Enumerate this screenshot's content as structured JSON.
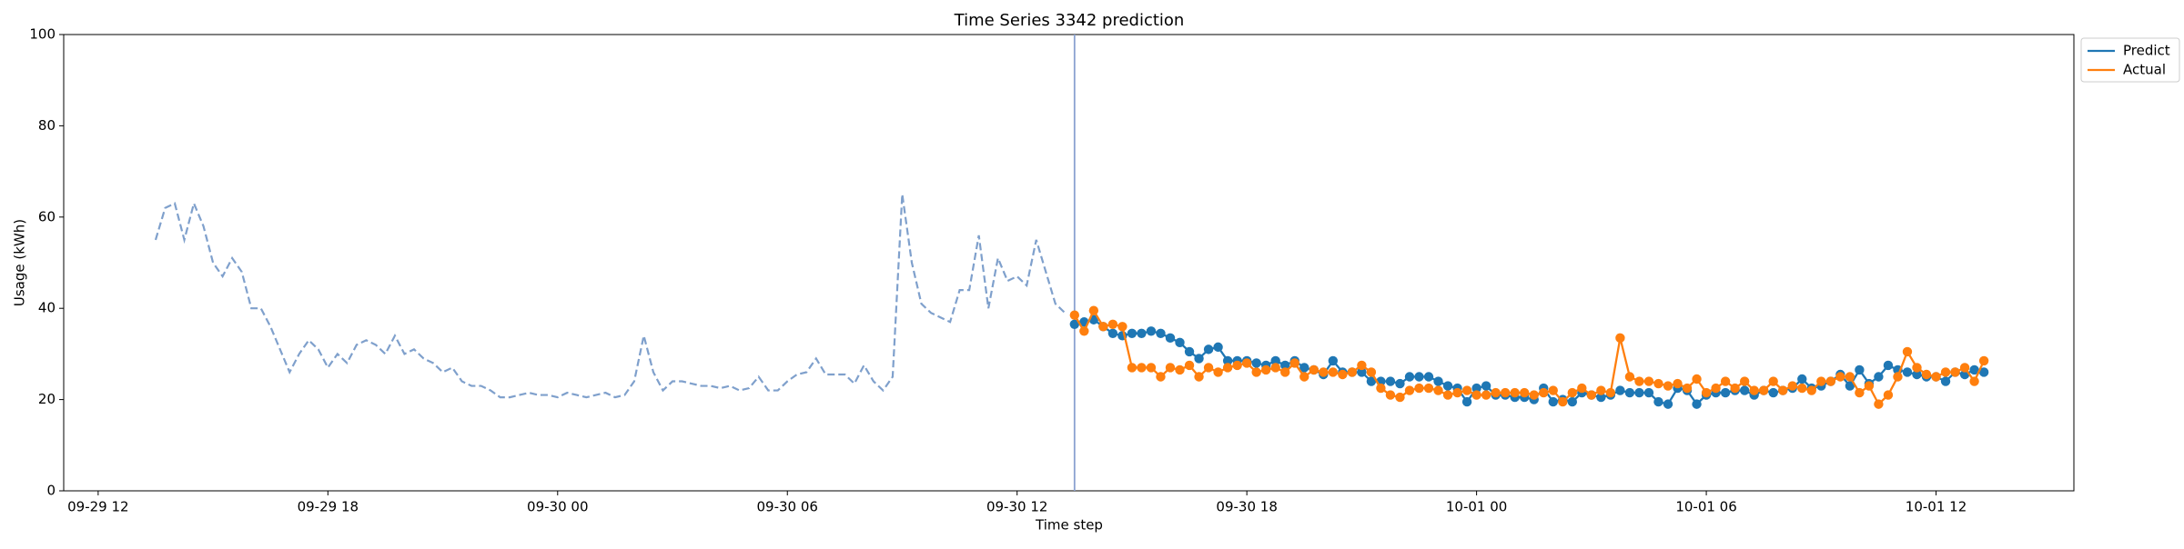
{
  "chart_data": {
    "type": "line",
    "title": "Time Series 3342 prediction",
    "xlabel": "Time step",
    "ylabel": "Usage (kWh)",
    "xlim": [
      11.1,
      63.6
    ],
    "xticks": [
      {
        "value": 12,
        "label": "09-29 12"
      },
      {
        "value": 18,
        "label": "09-29 18"
      },
      {
        "value": 24,
        "label": "09-30 00"
      },
      {
        "value": 30,
        "label": "09-30 06"
      },
      {
        "value": 36,
        "label": "09-30 12"
      },
      {
        "value": 42,
        "label": "09-30 18"
      },
      {
        "value": 48,
        "label": "10-01 00"
      },
      {
        "value": 54,
        "label": "10-01 06"
      },
      {
        "value": 60,
        "label": "10-01 12"
      }
    ],
    "ylim": [
      0,
      100
    ],
    "yticks": [
      0,
      20,
      40,
      60,
      80,
      100
    ],
    "grid": false,
    "legend": "upper right outside",
    "forecast_start": 37.5,
    "forecast_start_color": "#8aa2d0",
    "history": {
      "color": "#7fa0cc",
      "x": [
        13.5,
        13.75,
        14,
        14.25,
        14.5,
        14.75,
        15,
        15.25,
        15.5,
        15.75,
        16,
        16.25,
        16.5,
        16.75,
        17,
        17.25,
        17.5,
        17.75,
        18,
        18.25,
        18.5,
        18.75,
        19,
        19.25,
        19.5,
        19.75,
        20,
        20.25,
        20.5,
        20.75,
        21,
        21.25,
        21.5,
        21.75,
        22,
        22.25,
        22.5,
        22.75,
        23,
        23.25,
        23.5,
        23.75,
        24,
        24.25,
        24.5,
        24.75,
        25,
        25.25,
        25.5,
        25.75,
        26,
        26.25,
        26.5,
        26.75,
        27,
        27.25,
        27.5,
        27.75,
        28,
        28.25,
        28.5,
        28.75,
        29,
        29.25,
        29.5,
        29.75,
        30,
        30.25,
        30.5,
        30.75,
        31,
        31.25,
        31.5,
        31.75,
        32,
        32.25,
        32.5,
        32.75,
        33,
        33.25,
        33.5,
        33.75,
        34,
        34.25,
        34.5,
        34.75,
        35,
        35.25,
        35.5,
        35.75,
        36,
        36.25,
        36.5,
        36.75,
        37,
        37.25
      ],
      "values": [
        55,
        62,
        63,
        55,
        63,
        58,
        50,
        47,
        51,
        48,
        40,
        40,
        36,
        31,
        26,
        30,
        33,
        31,
        27,
        30,
        28,
        32,
        33,
        32,
        30,
        34,
        30,
        31,
        29,
        28,
        26,
        27,
        24,
        23,
        23,
        22,
        20.5,
        20.5,
        21,
        21.5,
        21,
        21,
        20.5,
        21.5,
        21,
        20.5,
        21,
        21.5,
        20.5,
        21,
        24,
        34,
        26,
        22,
        24,
        24,
        23.5,
        23,
        23,
        22.5,
        23,
        22,
        22.5,
        25,
        22,
        22,
        24,
        25.5,
        26,
        29,
        25.5,
        25.5,
        25.5,
        23.5,
        27.5,
        24,
        22,
        25,
        65,
        50,
        41,
        39,
        38,
        37,
        44,
        44,
        56,
        40,
        51,
        46,
        47,
        45,
        55,
        48,
        41,
        39
      ]
    },
    "x": [
      37.5,
      37.75,
      38,
      38.25,
      38.5,
      38.75,
      39,
      39.25,
      39.5,
      39.75,
      40,
      40.25,
      40.5,
      40.75,
      41,
      41.25,
      41.5,
      41.75,
      42,
      42.25,
      42.5,
      42.75,
      43,
      43.25,
      43.5,
      43.75,
      44,
      44.25,
      44.5,
      44.75,
      45,
      45.25,
      45.5,
      45.75,
      46,
      46.25,
      46.5,
      46.75,
      47,
      47.25,
      47.5,
      47.75,
      48,
      48.25,
      48.5,
      48.75,
      49,
      49.25,
      49.5,
      49.75,
      50,
      50.25,
      50.5,
      50.75,
      51,
      51.25,
      51.5,
      51.75,
      52,
      52.25,
      52.5,
      52.75,
      53,
      53.25,
      53.5,
      53.75,
      54,
      54.25,
      54.5,
      54.75,
      55,
      55.25,
      55.5,
      55.75,
      56,
      56.25,
      56.5,
      56.75,
      57,
      57.25,
      57.5,
      57.75,
      58,
      58.25,
      58.5,
      58.75,
      59,
      59.25,
      59.5,
      59.75,
      60,
      60.25,
      60.5,
      60.75,
      61,
      61.25
    ],
    "series": [
      {
        "name": "Predict",
        "color": "#1f77b4",
        "values": [
          36.5,
          37,
          37.5,
          36,
          34.5,
          34,
          34.5,
          34.5,
          35,
          34.5,
          33.5,
          32.5,
          30.5,
          29,
          31,
          31.5,
          28.5,
          28.5,
          28.5,
          28,
          27.5,
          28.5,
          27.5,
          28.5,
          27,
          26.5,
          25.5,
          28.5,
          26,
          26,
          26,
          24,
          24,
          24,
          23.5,
          25,
          25,
          25,
          24,
          23,
          22.5,
          19.5,
          22.5,
          23,
          21,
          21,
          20.5,
          20.5,
          20,
          22.5,
          19.5,
          20,
          19.5,
          21.5,
          21,
          20.5,
          21,
          22,
          21.5,
          21.5,
          21.5,
          19.5,
          19,
          22.5,
          22,
          19,
          21,
          21.5,
          21.5,
          22,
          22,
          21,
          22,
          21.5,
          22,
          22.5,
          24.5,
          22.5,
          23,
          24,
          25.5,
          23,
          26.5,
          23.5,
          25,
          27.5,
          26.5,
          26,
          25.5,
          25,
          25,
          24,
          26,
          25.5,
          26.5,
          26
        ]
      },
      {
        "name": "Actual",
        "color": "#ff7f0e",
        "values": [
          38.5,
          35,
          39.5,
          36,
          36.5,
          36,
          27,
          27,
          27,
          25,
          27,
          26.5,
          27.5,
          25,
          27,
          26,
          27,
          27.5,
          28,
          26,
          26.5,
          27,
          26,
          28,
          25,
          26.5,
          26,
          26,
          25.5,
          26,
          27.5,
          26,
          22.5,
          21,
          20.5,
          22,
          22.5,
          22.5,
          22,
          21,
          21.5,
          22,
          21,
          21,
          21.5,
          21.5,
          21.5,
          21.5,
          21,
          21.5,
          22,
          19.5,
          21.5,
          22.5,
          21,
          22,
          21.5,
          33.5,
          25,
          24,
          24,
          23.5,
          23,
          23.5,
          22.5,
          24.5,
          21.5,
          22.5,
          24,
          22.5,
          24,
          22,
          22,
          24,
          22,
          23,
          22.5,
          22,
          24,
          24,
          25,
          25,
          21.5,
          23,
          19,
          21,
          25,
          30.5,
          27,
          25.5,
          25,
          26,
          26,
          27,
          24,
          28.5
        ]
      }
    ]
  }
}
